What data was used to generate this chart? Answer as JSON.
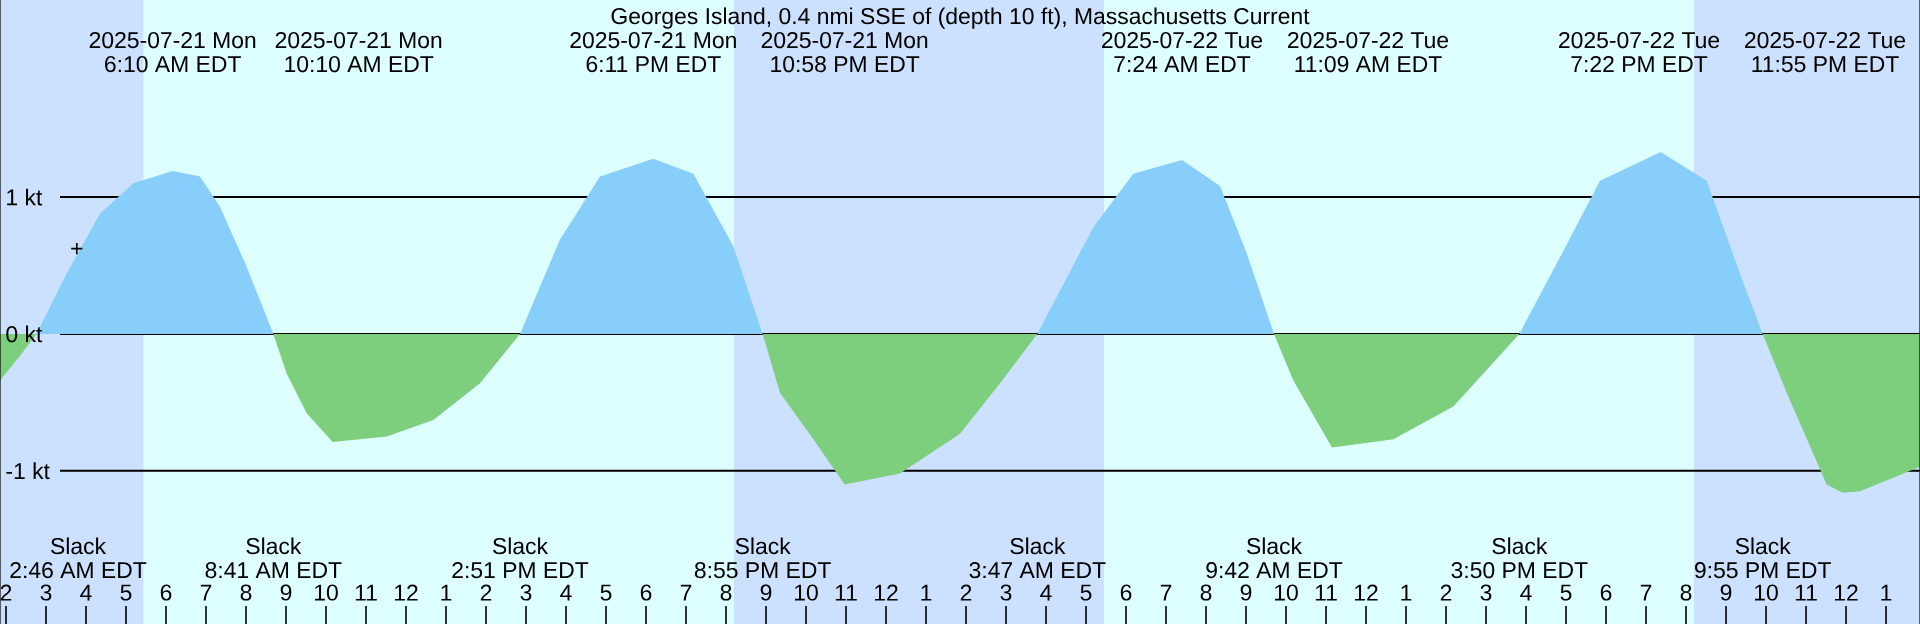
{
  "chart_data": {
    "type": "area",
    "title": "Georges Island, 0.4 nmi SSE of (depth 10 ft), Massachusetts Current",
    "x": [
      "2025-07-21T01:51",
      "2025-07-21T02:21",
      "2025-07-21T02:46",
      "2025-07-21T03:31",
      "2025-07-21T04:21",
      "2025-07-21T05:11",
      "2025-07-21T06:10",
      "2025-07-21T06:51",
      "2025-07-21T07:21",
      "2025-07-21T08:01",
      "2025-07-21T08:41",
      "2025-07-21T09:01",
      "2025-07-21T09:31",
      "2025-07-21T10:10",
      "2025-07-21T11:31",
      "2025-07-21T12:41",
      "2025-07-21T13:51",
      "2025-07-21T14:51",
      "2025-07-21T15:51",
      "2025-07-21T16:51",
      "2025-07-21T18:11",
      "2025-07-21T19:11",
      "2025-07-21T20:11",
      "2025-07-21T20:55",
      "2025-07-21T21:21",
      "2025-07-21T22:11",
      "2025-07-21T22:58",
      "2025-07-22T00:21",
      "2025-07-22T01:51",
      "2025-07-22T02:51",
      "2025-07-22T03:47",
      "2025-07-22T05:11",
      "2025-07-22T06:11",
      "2025-07-22T07:24",
      "2025-07-22T08:21",
      "2025-07-22T09:01",
      "2025-07-22T09:42",
      "2025-07-22T10:11",
      "2025-07-22T11:09",
      "2025-07-22T12:41",
      "2025-07-22T14:11",
      "2025-07-22T15:50",
      "2025-07-22T16:51",
      "2025-07-22T17:51",
      "2025-07-22T19:22",
      "2025-07-22T20:31",
      "2025-07-22T21:21",
      "2025-07-22T21:55",
      "2025-07-22T22:31",
      "2025-07-22T23:31",
      "2025-07-22T23:55",
      "2025-07-23T00:21",
      "2025-07-23T01:51"
    ],
    "series": [
      {
        "color": "#87cefa",
        "values": [
          null,
          null,
          0,
          0.44,
          0.88,
          1.1,
          1.19,
          1.15,
          0.93,
          0.49,
          0,
          null,
          null,
          null,
          null,
          null,
          null,
          0,
          0.69,
          1.15,
          1.28,
          1.17,
          0.64,
          0,
          null,
          null,
          null,
          null,
          null,
          null,
          0,
          0.78,
          1.17,
          1.27,
          1.08,
          0.59,
          0,
          null,
          null,
          null,
          null,
          0,
          0.56,
          1.12,
          1.33,
          1.12,
          0.44,
          0,
          null,
          null,
          null,
          null,
          null
        ]
      },
      {
        "color": "#7dce7d",
        "values": [
          -0.34,
          -0.16,
          0,
          null,
          null,
          null,
          null,
          null,
          null,
          null,
          0,
          -0.29,
          -0.58,
          -0.79,
          -0.75,
          -0.63,
          -0.36,
          0,
          null,
          null,
          null,
          null,
          null,
          0,
          -0.43,
          -0.77,
          -1.1,
          -1.02,
          -0.73,
          -0.36,
          0,
          null,
          null,
          null,
          null,
          null,
          0,
          -0.34,
          -0.83,
          -0.77,
          -0.53,
          0,
          null,
          null,
          null,
          null,
          null,
          0,
          -0.43,
          -1.1,
          -1.16,
          -1.15,
          -0.97
        ]
      }
    ],
    "xlim": [
      "2025-07-21T01:51",
      "2025-07-23T01:51"
    ],
    "ylim": [
      -2.12,
      2.44
    ],
    "xticks": [
      {
        "value": "2025-07-21T02:00",
        "label": "2"
      },
      {
        "value": "2025-07-21T03:00",
        "label": "3"
      },
      {
        "value": "2025-07-21T04:00",
        "label": "4"
      },
      {
        "value": "2025-07-21T05:00",
        "label": "5"
      },
      {
        "value": "2025-07-21T06:00",
        "label": "6"
      },
      {
        "value": "2025-07-21T07:00",
        "label": "7"
      },
      {
        "value": "2025-07-21T08:00",
        "label": "8"
      },
      {
        "value": "2025-07-21T09:00",
        "label": "9"
      },
      {
        "value": "2025-07-21T10:00",
        "label": "10"
      },
      {
        "value": "2025-07-21T11:00",
        "label": "11"
      },
      {
        "value": "2025-07-21T12:00",
        "label": "12"
      },
      {
        "value": "2025-07-21T13:00",
        "label": "1"
      },
      {
        "value": "2025-07-21T14:00",
        "label": "2"
      },
      {
        "value": "2025-07-21T15:00",
        "label": "3"
      },
      {
        "value": "2025-07-21T16:00",
        "label": "4"
      },
      {
        "value": "2025-07-21T17:00",
        "label": "5"
      },
      {
        "value": "2025-07-21T18:00",
        "label": "6"
      },
      {
        "value": "2025-07-21T19:00",
        "label": "7"
      },
      {
        "value": "2025-07-21T20:00",
        "label": "8"
      },
      {
        "value": "2025-07-21T21:00",
        "label": "9"
      },
      {
        "value": "2025-07-21T22:00",
        "label": "10"
      },
      {
        "value": "2025-07-21T23:00",
        "label": "11"
      },
      {
        "value": "2025-07-22T00:00",
        "label": "12"
      },
      {
        "value": "2025-07-22T01:00",
        "label": "1"
      },
      {
        "value": "2025-07-22T02:00",
        "label": "2"
      },
      {
        "value": "2025-07-22T03:00",
        "label": "3"
      },
      {
        "value": "2025-07-22T04:00",
        "label": "4"
      },
      {
        "value": "2025-07-22T05:00",
        "label": "5"
      },
      {
        "value": "2025-07-22T06:00",
        "label": "6"
      },
      {
        "value": "2025-07-22T07:00",
        "label": "7"
      },
      {
        "value": "2025-07-22T08:00",
        "label": "8"
      },
      {
        "value": "2025-07-22T09:00",
        "label": "9"
      },
      {
        "value": "2025-07-22T10:00",
        "label": "10"
      },
      {
        "value": "2025-07-22T11:00",
        "label": "11"
      },
      {
        "value": "2025-07-22T12:00",
        "label": "12"
      },
      {
        "value": "2025-07-22T13:00",
        "label": "1"
      },
      {
        "value": "2025-07-22T14:00",
        "label": "2"
      },
      {
        "value": "2025-07-22T15:00",
        "label": "3"
      },
      {
        "value": "2025-07-22T16:00",
        "label": "4"
      },
      {
        "value": "2025-07-22T17:00",
        "label": "5"
      },
      {
        "value": "2025-07-22T18:00",
        "label": "6"
      },
      {
        "value": "2025-07-22T19:00",
        "label": "7"
      },
      {
        "value": "2025-07-22T20:00",
        "label": "8"
      },
      {
        "value": "2025-07-22T21:00",
        "label": "9"
      },
      {
        "value": "2025-07-22T22:00",
        "label": "10"
      },
      {
        "value": "2025-07-22T23:00",
        "label": "11"
      },
      {
        "value": "2025-07-23T00:00",
        "label": "12"
      },
      {
        "value": "2025-07-23T01:00",
        "label": "1"
      }
    ],
    "yticks": [
      {
        "value": -1,
        "label": "-1 kt"
      },
      {
        "value": 0,
        "label": "0 kt"
      },
      {
        "value": 1,
        "label": "1 kt"
      }
    ],
    "grid": "y",
    "bands": [
      {
        "axis": "x",
        "from": "2025-07-21T01:51",
        "to": "2025-07-21T05:26",
        "color": "#cce0ff"
      },
      {
        "axis": "x",
        "from": "2025-07-21T20:12",
        "to": "2025-07-22T05:27",
        "color": "#cce0ff"
      },
      {
        "axis": "x",
        "from": "2025-07-22T20:12",
        "to": "2025-07-23T01:51",
        "color": "#cce0ff"
      }
    ],
    "annotations": [
      "+",
      "Slack",
      "2:46 AM EDT",
      "2025-07-21 Mon",
      "6:10 AM EDT",
      "Slack",
      "8:41 AM EDT",
      "2025-07-21 Mon",
      "10:10 AM EDT",
      "Slack",
      "2:51 PM EDT",
      "2025-07-21 Mon",
      "6:11 PM EDT",
      "Slack",
      "8:55 PM EDT",
      "2025-07-21 Mon",
      "10:58 PM EDT",
      "Slack",
      "3:47 AM EDT",
      "2025-07-22 Tue",
      "7:24 AM EDT",
      "Slack",
      "9:42 AM EDT",
      "2025-07-22 Tue",
      "11:09 AM EDT",
      "Slack",
      "3:50 PM EDT",
      "2025-07-22 Tue",
      "7:22 PM EDT",
      "Slack",
      "9:55 PM EDT",
      "2025-07-22 Tue",
      "11:55 PM EDT"
    ]
  }
}
